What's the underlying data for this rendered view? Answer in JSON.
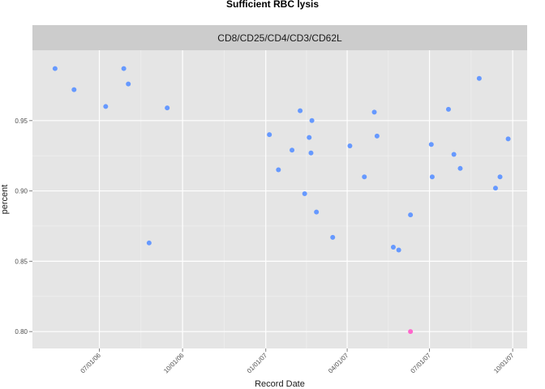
{
  "chart_data": {
    "type": "scatter",
    "title": "Sufficient RBC lysis",
    "facet_label": "CD8/CD25/CD4/CD3/CD62L",
    "xlabel": "Record Date",
    "ylabel": "percent",
    "xlim": [
      "2006-04-18",
      "2007-10-17"
    ],
    "ylim": [
      0.788,
      1.0
    ],
    "x_ticks": [
      {
        "date": "2006-07-01",
        "label": "07/01/06"
      },
      {
        "date": "2006-10-01",
        "label": "10/01/06"
      },
      {
        "date": "2007-01-01",
        "label": "01/01/07"
      },
      {
        "date": "2007-04-01",
        "label": "04/01/07"
      },
      {
        "date": "2007-07-01",
        "label": "07/01/07"
      },
      {
        "date": "2007-10-01",
        "label": "10/01/07"
      }
    ],
    "y_ticks": [
      {
        "value": 0.8,
        "label": "0.80"
      },
      {
        "value": 0.85,
        "label": "0.85"
      },
      {
        "value": 0.9,
        "label": "0.90"
      },
      {
        "value": 0.95,
        "label": "0.95"
      }
    ],
    "grid": true,
    "legend": "none",
    "colors": {
      "normal": "#6699ff",
      "flagged": "#ff66cc",
      "panel": "#e5e5e5",
      "strip": "#cccccc",
      "grid": "#ffffff"
    },
    "points": [
      {
        "x": "2006-05-13",
        "y": 0.987
      },
      {
        "x": "2006-06-03",
        "y": 0.972
      },
      {
        "x": "2006-07-08",
        "y": 0.96
      },
      {
        "x": "2006-07-28",
        "y": 0.987
      },
      {
        "x": "2006-08-02",
        "y": 0.976
      },
      {
        "x": "2006-08-25",
        "y": 0.863
      },
      {
        "x": "2006-09-14",
        "y": 0.959
      },
      {
        "x": "2007-01-05",
        "y": 0.94
      },
      {
        "x": "2007-01-15",
        "y": 0.915
      },
      {
        "x": "2007-01-30",
        "y": 0.929
      },
      {
        "x": "2007-02-08",
        "y": 0.957
      },
      {
        "x": "2007-02-13",
        "y": 0.898
      },
      {
        "x": "2007-02-18",
        "y": 0.938
      },
      {
        "x": "2007-02-20",
        "y": 0.927
      },
      {
        "x": "2007-02-21",
        "y": 0.95
      },
      {
        "x": "2007-02-26",
        "y": 0.885
      },
      {
        "x": "2007-03-16",
        "y": 0.867
      },
      {
        "x": "2007-04-04",
        "y": 0.932
      },
      {
        "x": "2007-04-20",
        "y": 0.91
      },
      {
        "x": "2007-05-01",
        "y": 0.956
      },
      {
        "x": "2007-05-04",
        "y": 0.939
      },
      {
        "x": "2007-05-22",
        "y": 0.86
      },
      {
        "x": "2007-05-28",
        "y": 0.858
      },
      {
        "x": "2007-06-10",
        "y": 0.883
      },
      {
        "x": "2007-06-10",
        "y": 0.8,
        "flagged": true
      },
      {
        "x": "2007-07-03",
        "y": 0.933
      },
      {
        "x": "2007-07-04",
        "y": 0.91
      },
      {
        "x": "2007-07-22",
        "y": 0.958
      },
      {
        "x": "2007-07-28",
        "y": 0.926
      },
      {
        "x": "2007-08-04",
        "y": 0.916
      },
      {
        "x": "2007-08-25",
        "y": 0.98
      },
      {
        "x": "2007-09-12",
        "y": 0.902
      },
      {
        "x": "2007-09-17",
        "y": 0.91
      },
      {
        "x": "2007-09-26",
        "y": 0.937
      }
    ]
  }
}
